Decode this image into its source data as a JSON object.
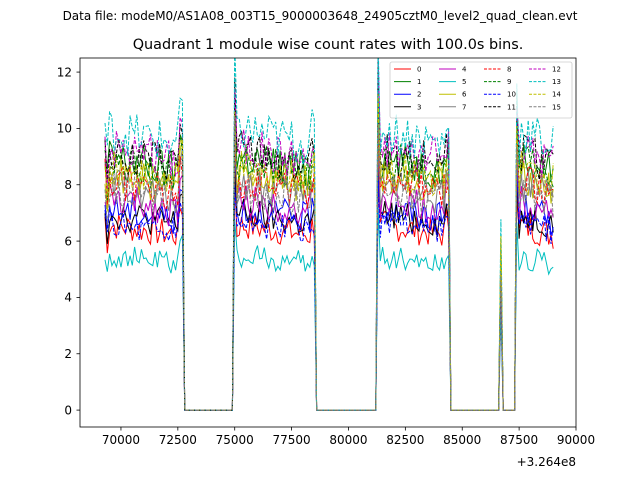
{
  "chart_data": {
    "type": "line",
    "suptitle": "Data file: modeM0/AS1A08_003T15_9000003648_24905cztM0_level2_quad_clean.evt",
    "title": "Quadrant 1 module wise count rates with 100.0s bins.",
    "xlabel": "",
    "ylabel": "",
    "x_offset_label": "+3.264e8",
    "xlim": [
      68200,
      90000
    ],
    "ylim": [
      -0.6,
      12.5
    ],
    "x_ticks": [
      70000,
      72500,
      75000,
      77500,
      80000,
      82500,
      85000,
      87500,
      90000
    ],
    "y_ticks": [
      0,
      2,
      4,
      6,
      8,
      10,
      12
    ],
    "legend_position": "top-right",
    "segments": [
      {
        "start": 69300,
        "end": 72700,
        "start_spike": 1.03,
        "end_spike": 1.16
      },
      {
        "start": 75000,
        "end": 78500,
        "start_spike": 1.25,
        "end_spike": 1.05
      },
      {
        "start": 81300,
        "end": 84400,
        "start_spike": 1.28,
        "end_spike": 1.08
      },
      {
        "start": 86700,
        "end": 86700,
        "start_spike": 0.72,
        "end_spike": 0.72
      },
      {
        "start": 87400,
        "end": 89000,
        "start_spike": 1.2,
        "end_spike": 1.0
      }
    ],
    "series": [
      {
        "name": "0",
        "color": "#ff0000",
        "dash": "solid",
        "level": 6.6
      },
      {
        "name": "1",
        "color": "#008000",
        "dash": "solid",
        "level": 9.0
      },
      {
        "name": "2",
        "color": "#0000ff",
        "dash": "solid",
        "level": 7.2
      },
      {
        "name": "3",
        "color": "#000000",
        "dash": "solid",
        "level": 7.0
      },
      {
        "name": "4",
        "color": "#bf00bf",
        "dash": "solid",
        "level": 7.5
      },
      {
        "name": "5",
        "color": "#00bfbf",
        "dash": "solid",
        "level": 5.5
      },
      {
        "name": "6",
        "color": "#bfbf00",
        "dash": "solid",
        "level": 8.4
      },
      {
        "name": "7",
        "color": "#808080",
        "dash": "solid",
        "level": 8.0
      },
      {
        "name": "8",
        "color": "#ff0000",
        "dash": "dashed",
        "level": 8.2
      },
      {
        "name": "9",
        "color": "#008000",
        "dash": "dashed",
        "level": 8.9
      },
      {
        "name": "10",
        "color": "#0000ff",
        "dash": "dashed",
        "level": 6.7
      },
      {
        "name": "11",
        "color": "#000000",
        "dash": "dashed",
        "level": 9.2
      },
      {
        "name": "12",
        "color": "#bf00bf",
        "dash": "dashed",
        "level": 9.4
      },
      {
        "name": "13",
        "color": "#00bfbf",
        "dash": "dashed",
        "level": 10.0
      },
      {
        "name": "14",
        "color": "#bfbf00",
        "dash": "dashed",
        "level": 8.6
      },
      {
        "name": "15",
        "color": "#808080",
        "dash": "dashed",
        "level": 7.9
      }
    ]
  }
}
